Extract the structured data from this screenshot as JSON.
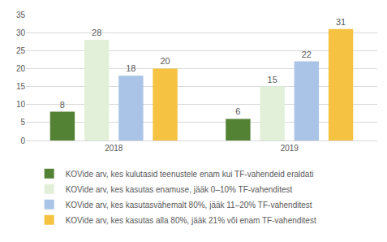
{
  "chart_data": {
    "type": "bar",
    "categories": [
      "2018",
      "2019"
    ],
    "series": [
      {
        "name": "KOVide arv, kes kulutasid teenustele enam kui TF-vahendeid eraldati",
        "color": "#548235",
        "values": [
          8,
          6
        ]
      },
      {
        "name": "KOVide arv, kes kasutas enamuse, jääk 0–10% TF-vahenditest",
        "color": "#e2f0d9",
        "values": [
          28,
          15
        ]
      },
      {
        "name": "KOVide arv, kes kasutasvähemalt 80%, jääk 11–20% TF-vahenditest",
        "color": "#a9c4e6",
        "values": [
          18,
          22
        ]
      },
      {
        "name": "KOVide arv, kes kasutas alla 80%, jääk 21% või enam TF-vahenditest",
        "color": "#f5c242",
        "values": [
          20,
          31
        ]
      }
    ],
    "ylim": [
      0,
      35
    ],
    "yticks": [
      0,
      5,
      10,
      15,
      20,
      25,
      30,
      35
    ],
    "grid": true,
    "legend": "bottom",
    "data_labels": true
  }
}
